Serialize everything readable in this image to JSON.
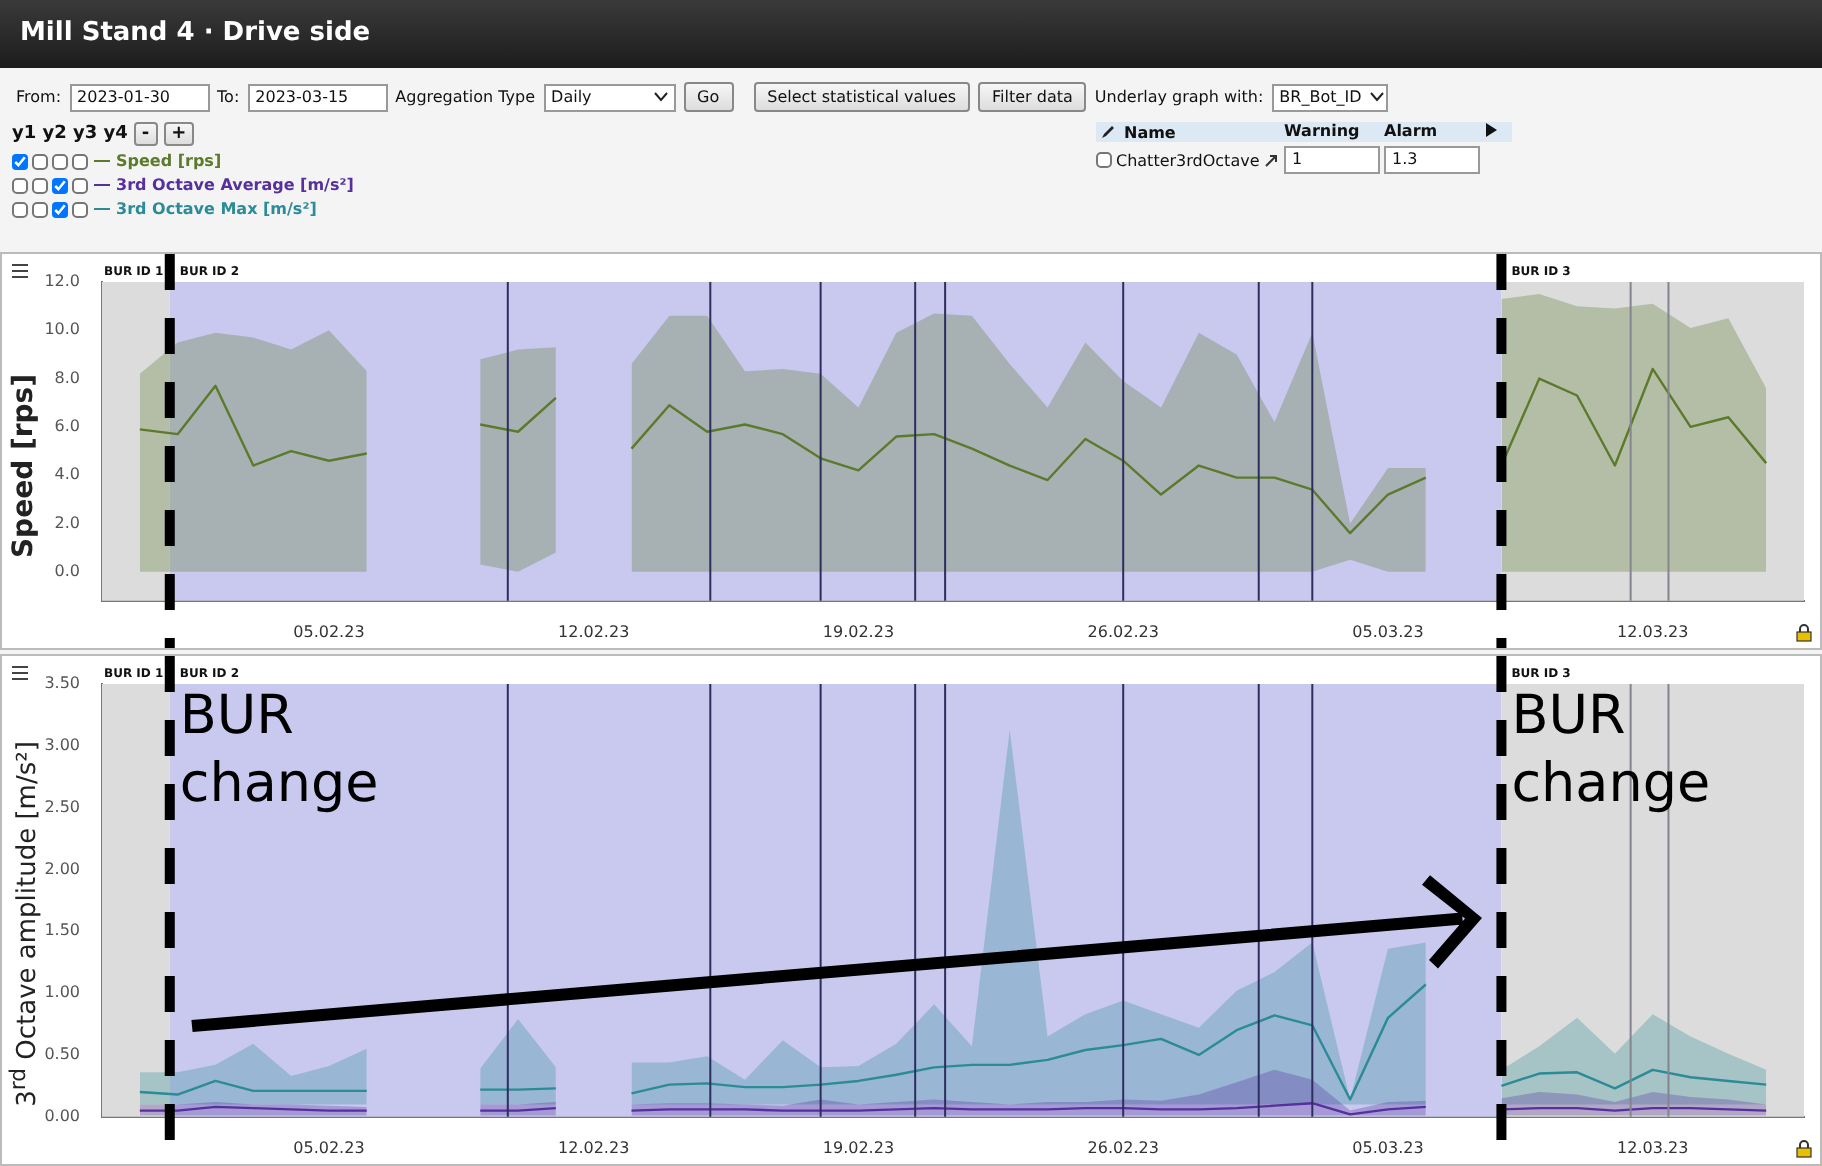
{
  "chart_data": [
    {
      "type": "line",
      "title": "Mill Stand 4 · Drive side",
      "ylabel": "Speed [rps]",
      "annotations": [
        "From:",
        "2023-01-30",
        "To:",
        "2023-03-15",
        "Aggregation Type",
        "Daily",
        "Go",
        "Select statistical values",
        "Filter data",
        "Underlay graph with:",
        "BR_Bot_ID",
        "y1 y2 y3 y4",
        "-",
        "+",
        "Name",
        "Warning",
        "Alarm",
        "Chatter3rdOctave",
        "1",
        "1.3"
      ],
      "x": [
        "2023-01-31",
        "2023-02-01",
        "2023-02-02",
        "2023-02-03",
        "2023-02-04",
        "2023-02-05",
        "2023-02-06",
        "2023-02-07",
        "2023-02-08",
        "2023-02-09",
        "2023-02-10",
        "2023-02-11",
        "2023-02-12",
        "2023-02-13",
        "2023-02-14",
        "2023-02-15",
        "2023-02-16",
        "2023-02-17",
        "2023-02-18",
        "2023-02-19",
        "2023-02-20",
        "2023-02-21",
        "2023-02-22",
        "2023-02-23",
        "2023-02-24",
        "2023-02-25",
        "2023-02-26",
        "2023-02-27",
        "2023-02-28",
        "2023-03-01",
        "2023-03-02",
        "2023-03-03",
        "2023-03-04",
        "2023-03-05",
        "2023-03-06",
        "2023-03-07",
        "2023-03-08",
        "2023-03-09",
        "2023-03-10",
        "2023-03-11",
        "2023-03-12",
        "2023-03-13",
        "2023-03-14",
        "2023-03-15"
      ],
      "series": [
        {
          "name": "Speed [rps]",
          "color": "#5b7a2c",
          "values": [
            5.9,
            5.7,
            7.7,
            4.4,
            5.0,
            4.6,
            4.9,
            null,
            null,
            6.1,
            5.8,
            7.2,
            null,
            5.1,
            6.9,
            5.8,
            6.1,
            5.7,
            4.7,
            4.2,
            5.6,
            5.7,
            5.1,
            4.4,
            3.8,
            5.5,
            4.6,
            3.2,
            4.4,
            3.9,
            3.9,
            3.4,
            1.6,
            3.2,
            3.9,
            null,
            4.4,
            8.0,
            7.3,
            4.4,
            8.4,
            6.0,
            6.4,
            4.5
          ],
          "upper": [
            8.2,
            9.5,
            9.9,
            9.7,
            9.2,
            10.0,
            8.3,
            null,
            null,
            8.8,
            9.2,
            9.3,
            null,
            8.6,
            10.6,
            10.6,
            8.3,
            8.4,
            8.2,
            6.8,
            9.9,
            10.7,
            10.6,
            8.6,
            6.8,
            9.5,
            7.9,
            6.8,
            9.9,
            9.0,
            6.2,
            9.9,
            2.0,
            4.3,
            4.3,
            null,
            11.3,
            11.5,
            11.0,
            10.9,
            11.1,
            10.1,
            10.5,
            7.6
          ],
          "lower": [
            0,
            0,
            0,
            0,
            0,
            0,
            0,
            null,
            null,
            0.3,
            0,
            0.8,
            null,
            0,
            0,
            0,
            0,
            0,
            0,
            0,
            0,
            0,
            0,
            0,
            0,
            0,
            0,
            0,
            0,
            0,
            0,
            0,
            0.5,
            0,
            0,
            null,
            0,
            0,
            0,
            0,
            0,
            0,
            0,
            0
          ]
        }
      ],
      "xlim": [
        "2023-01-30",
        "2023-03-16"
      ],
      "xticks": [
        {
          "value": "2023-02-05",
          "label": "05.02.23"
        },
        {
          "value": "2023-02-12",
          "label": "12.02.23"
        },
        {
          "value": "2023-02-19",
          "label": "19.02.23"
        },
        {
          "value": "2023-02-26",
          "label": "26.02.23"
        },
        {
          "value": "2023-03-05",
          "label": "05.03.23"
        },
        {
          "value": "2023-03-12",
          "label": "12.03.23"
        }
      ],
      "ylim": [
        -1.2,
        12
      ],
      "yticks": [
        {
          "value": 0,
          "label": "0.0"
        },
        {
          "value": 2,
          "label": "2.0"
        },
        {
          "value": 4,
          "label": "4.0"
        },
        {
          "value": 6,
          "label": "6.0"
        },
        {
          "value": 8,
          "label": "8.0"
        },
        {
          "value": 10,
          "label": "10.0"
        },
        {
          "value": 12,
          "label": "12.0"
        }
      ],
      "legend": "top left",
      "bands": [
        {
          "axis": "x",
          "from": "2023-01-30",
          "to": "2023-01-31T19:00",
          "label": "BUR ID 1",
          "color": "#dcdcdc"
        },
        {
          "axis": "x",
          "from": "2023-01-31T19:00",
          "to": "2023-03-08",
          "label": "BUR ID 2",
          "color": "#c9c9f0"
        },
        {
          "axis": "x",
          "from": "2023-03-08",
          "to": "2023-03-16",
          "label": "BUR ID 3",
          "color": "#dcdcdc"
        }
      ],
      "ref_lines": [
        {
          "axis": "x",
          "value": "2023-02-09T17:30",
          "color": "#2e2e5e"
        },
        {
          "axis": "x",
          "value": "2023-02-15T02:00",
          "color": "#2e2e5e"
        },
        {
          "axis": "x",
          "value": "2023-02-18",
          "color": "#2e2e5e"
        },
        {
          "axis": "x",
          "value": "2023-02-20T12:00",
          "color": "#2e2e5e"
        },
        {
          "axis": "x",
          "value": "2023-02-21T07:00",
          "color": "#2e2e5e"
        },
        {
          "axis": "x",
          "value": "2023-02-26",
          "color": "#2e2e5e"
        },
        {
          "axis": "x",
          "value": "2023-03-01T14:00",
          "color": "#2e2e5e"
        },
        {
          "axis": "x",
          "value": "2023-03-03",
          "color": "#2e2e5e"
        },
        {
          "axis": "x",
          "value": "2023-03-11T10:00",
          "color": "#85858f"
        },
        {
          "axis": "x",
          "value": "2023-03-12T10:00",
          "color": "#85858f"
        },
        {
          "axis": "x",
          "value": "2023-01-31T19:00",
          "color": "#000000",
          "line_style": "dashed"
        },
        {
          "axis": "x",
          "value": "2023-03-08",
          "color": "#000000",
          "line_style": "dashed"
        }
      ]
    },
    {
      "type": "line",
      "ylabel": "3$^{rd}$ Octave amplitude [m/s²]",
      "x": [
        "2023-01-31",
        "2023-02-01",
        "2023-02-02",
        "2023-02-03",
        "2023-02-04",
        "2023-02-05",
        "2023-02-06",
        "2023-02-07",
        "2023-02-08",
        "2023-02-09",
        "2023-02-10",
        "2023-02-11",
        "2023-02-12",
        "2023-02-13",
        "2023-02-14",
        "2023-02-15",
        "2023-02-16",
        "2023-02-17",
        "2023-02-18",
        "2023-02-19",
        "2023-02-20",
        "2023-02-21",
        "2023-02-22",
        "2023-02-23",
        "2023-02-24",
        "2023-02-25",
        "2023-02-26",
        "2023-02-27",
        "2023-02-28",
        "2023-03-01",
        "2023-03-02",
        "2023-03-03",
        "2023-03-04",
        "2023-03-05",
        "2023-03-06",
        "2023-03-07",
        "2023-03-08",
        "2023-03-09",
        "2023-03-10",
        "2023-03-11",
        "2023-03-12",
        "2023-03-13",
        "2023-03-14",
        "2023-03-15"
      ],
      "series": [
        {
          "name": "3rd Octave Average [m/s²]",
          "color": "#56309c",
          "values": [
            0.05,
            0.05,
            0.08,
            0.07,
            0.06,
            0.05,
            0.05,
            null,
            null,
            0.05,
            0.05,
            0.07,
            null,
            0.05,
            0.06,
            0.06,
            0.06,
            0.05,
            0.05,
            0.05,
            0.06,
            0.07,
            0.06,
            0.06,
            0.06,
            0.07,
            0.07,
            0.06,
            0.06,
            0.07,
            0.09,
            0.11,
            0.02,
            0.06,
            0.08,
            null,
            0.06,
            0.07,
            0.07,
            0.05,
            0.07,
            0.07,
            0.06,
            0.05
          ],
          "upper": [
            0.1,
            0.1,
            0.12,
            0.1,
            0.1,
            0.09,
            0.08,
            null,
            null,
            0.1,
            0.1,
            0.12,
            null,
            0.1,
            0.11,
            0.11,
            0.1,
            0.09,
            0.14,
            0.1,
            0.12,
            0.14,
            0.12,
            0.1,
            0.12,
            0.12,
            0.14,
            0.13,
            0.18,
            0.28,
            0.38,
            0.3,
            0.05,
            0.12,
            0.13,
            null,
            0.15,
            0.2,
            0.18,
            0.12,
            0.2,
            0.16,
            0.14,
            0.1
          ],
          "lower": [
            0.01,
            0.01,
            0.01,
            0.01,
            0.01,
            0.01,
            0.01,
            null,
            null,
            0.01,
            0.01,
            0.01,
            null,
            0.01,
            0.01,
            0.01,
            0.01,
            0.01,
            0.01,
            0.01,
            0.01,
            0.01,
            0.01,
            0.01,
            0.01,
            0.01,
            0.01,
            0.01,
            0.01,
            0.01,
            0.01,
            0.01,
            0.01,
            0.01,
            0.01,
            null,
            0.01,
            0.01,
            0.01,
            0.01,
            0.01,
            0.01,
            0.01,
            0.01
          ]
        },
        {
          "name": "3rd Octave Max [m/s²]",
          "color": "#2b8b96",
          "values": [
            0.2,
            0.18,
            0.29,
            0.21,
            0.21,
            0.21,
            0.21,
            null,
            null,
            0.22,
            0.22,
            0.23,
            null,
            0.19,
            0.26,
            0.27,
            0.24,
            0.24,
            0.26,
            0.29,
            0.34,
            0.4,
            0.42,
            0.42,
            0.46,
            0.54,
            0.58,
            0.63,
            0.5,
            0.7,
            0.82,
            0.74,
            0.14,
            0.8,
            1.07,
            null,
            0.25,
            0.35,
            0.36,
            0.23,
            0.38,
            0.32,
            0.29,
            0.26
          ],
          "upper": [
            0.36,
            0.36,
            0.42,
            0.59,
            0.33,
            0.41,
            0.55,
            null,
            null,
            0.39,
            0.79,
            0.4,
            null,
            0.44,
            0.44,
            0.49,
            0.3,
            0.62,
            0.4,
            0.41,
            0.59,
            0.91,
            0.57,
            3.13,
            0.65,
            0.83,
            0.94,
            0.83,
            0.72,
            1.02,
            1.17,
            1.41,
            0.14,
            1.36,
            1.41,
            null,
            0.38,
            0.57,
            0.8,
            0.51,
            0.83,
            0.65,
            0.51,
            0.38
          ],
          "lower": [
            0.1,
            0.1,
            0.1,
            0.1,
            0.1,
            0.1,
            0.1,
            null,
            null,
            0.1,
            0.1,
            0.1,
            null,
            0.1,
            0.1,
            0.1,
            0.1,
            0.1,
            0.1,
            0.1,
            0.1,
            0.1,
            0.1,
            0.1,
            0.1,
            0.1,
            0.1,
            0.1,
            0.1,
            0.1,
            0.1,
            0.1,
            0.1,
            0.1,
            0.1,
            null,
            0.1,
            0.1,
            0.1,
            0.1,
            0.1,
            0.1,
            0.1,
            0.1
          ]
        }
      ],
      "xlim": [
        "2023-01-30",
        "2023-03-16"
      ],
      "xticks": [
        {
          "value": "2023-02-05",
          "label": "05.02.23"
        },
        {
          "value": "2023-02-12",
          "label": "12.02.23"
        },
        {
          "value": "2023-02-19",
          "label": "19.02.23"
        },
        {
          "value": "2023-02-26",
          "label": "26.02.23"
        },
        {
          "value": "2023-03-05",
          "label": "05.03.23"
        },
        {
          "value": "2023-03-12",
          "label": "12.03.23"
        }
      ],
      "ylim": [
        0,
        3.5
      ],
      "yticks": [
        {
          "value": 0,
          "label": "0.00"
        },
        {
          "value": 0.5,
          "label": "0.50"
        },
        {
          "value": 1,
          "label": "1.00"
        },
        {
          "value": 1.5,
          "label": "1.50"
        },
        {
          "value": 2,
          "label": "2.00"
        },
        {
          "value": 2.5,
          "label": "2.50"
        },
        {
          "value": 3,
          "label": "3.00"
        },
        {
          "value": 3.5,
          "label": "3.50"
        }
      ],
      "legend": "top left",
      "bands": [
        {
          "axis": "x",
          "from": "2023-01-30",
          "to": "2023-01-31T19:00",
          "label": "BUR ID 1",
          "color": "#dcdcdc"
        },
        {
          "axis": "x",
          "from": "2023-01-31T19:00",
          "to": "2023-03-08",
          "label": "BUR ID 2",
          "color": "#c9c9f0"
        },
        {
          "axis": "x",
          "from": "2023-03-08",
          "to": "2023-03-16",
          "label": "BUR ID 3",
          "color": "#dcdcdc"
        }
      ],
      "ref_lines": [
        {
          "axis": "x",
          "value": "2023-02-09T17:30",
          "color": "#2e2e5e"
        },
        {
          "axis": "x",
          "value": "2023-02-15T02:00",
          "color": "#2e2e5e"
        },
        {
          "axis": "x",
          "value": "2023-02-18",
          "color": "#2e2e5e"
        },
        {
          "axis": "x",
          "value": "2023-02-20T12:00",
          "color": "#2e2e5e"
        },
        {
          "axis": "x",
          "value": "2023-02-21T07:00",
          "color": "#2e2e5e"
        },
        {
          "axis": "x",
          "value": "2023-02-26",
          "color": "#2e2e5e"
        },
        {
          "axis": "x",
          "value": "2023-03-01T14:00",
          "color": "#2e2e5e"
        },
        {
          "axis": "x",
          "value": "2023-03-03",
          "color": "#2e2e5e"
        },
        {
          "axis": "x",
          "value": "2023-03-11T10:00",
          "color": "#85858f"
        },
        {
          "axis": "x",
          "value": "2023-03-12T10:00",
          "color": "#85858f"
        },
        {
          "axis": "x",
          "value": "2023-01-31T19:00",
          "color": "#000000",
          "line_style": "dashed",
          "label": "BUR change"
        },
        {
          "axis": "x",
          "value": "2023-03-08",
          "color": "#000000",
          "line_style": "dashed",
          "label": "BUR change"
        }
      ]
    }
  ]
}
